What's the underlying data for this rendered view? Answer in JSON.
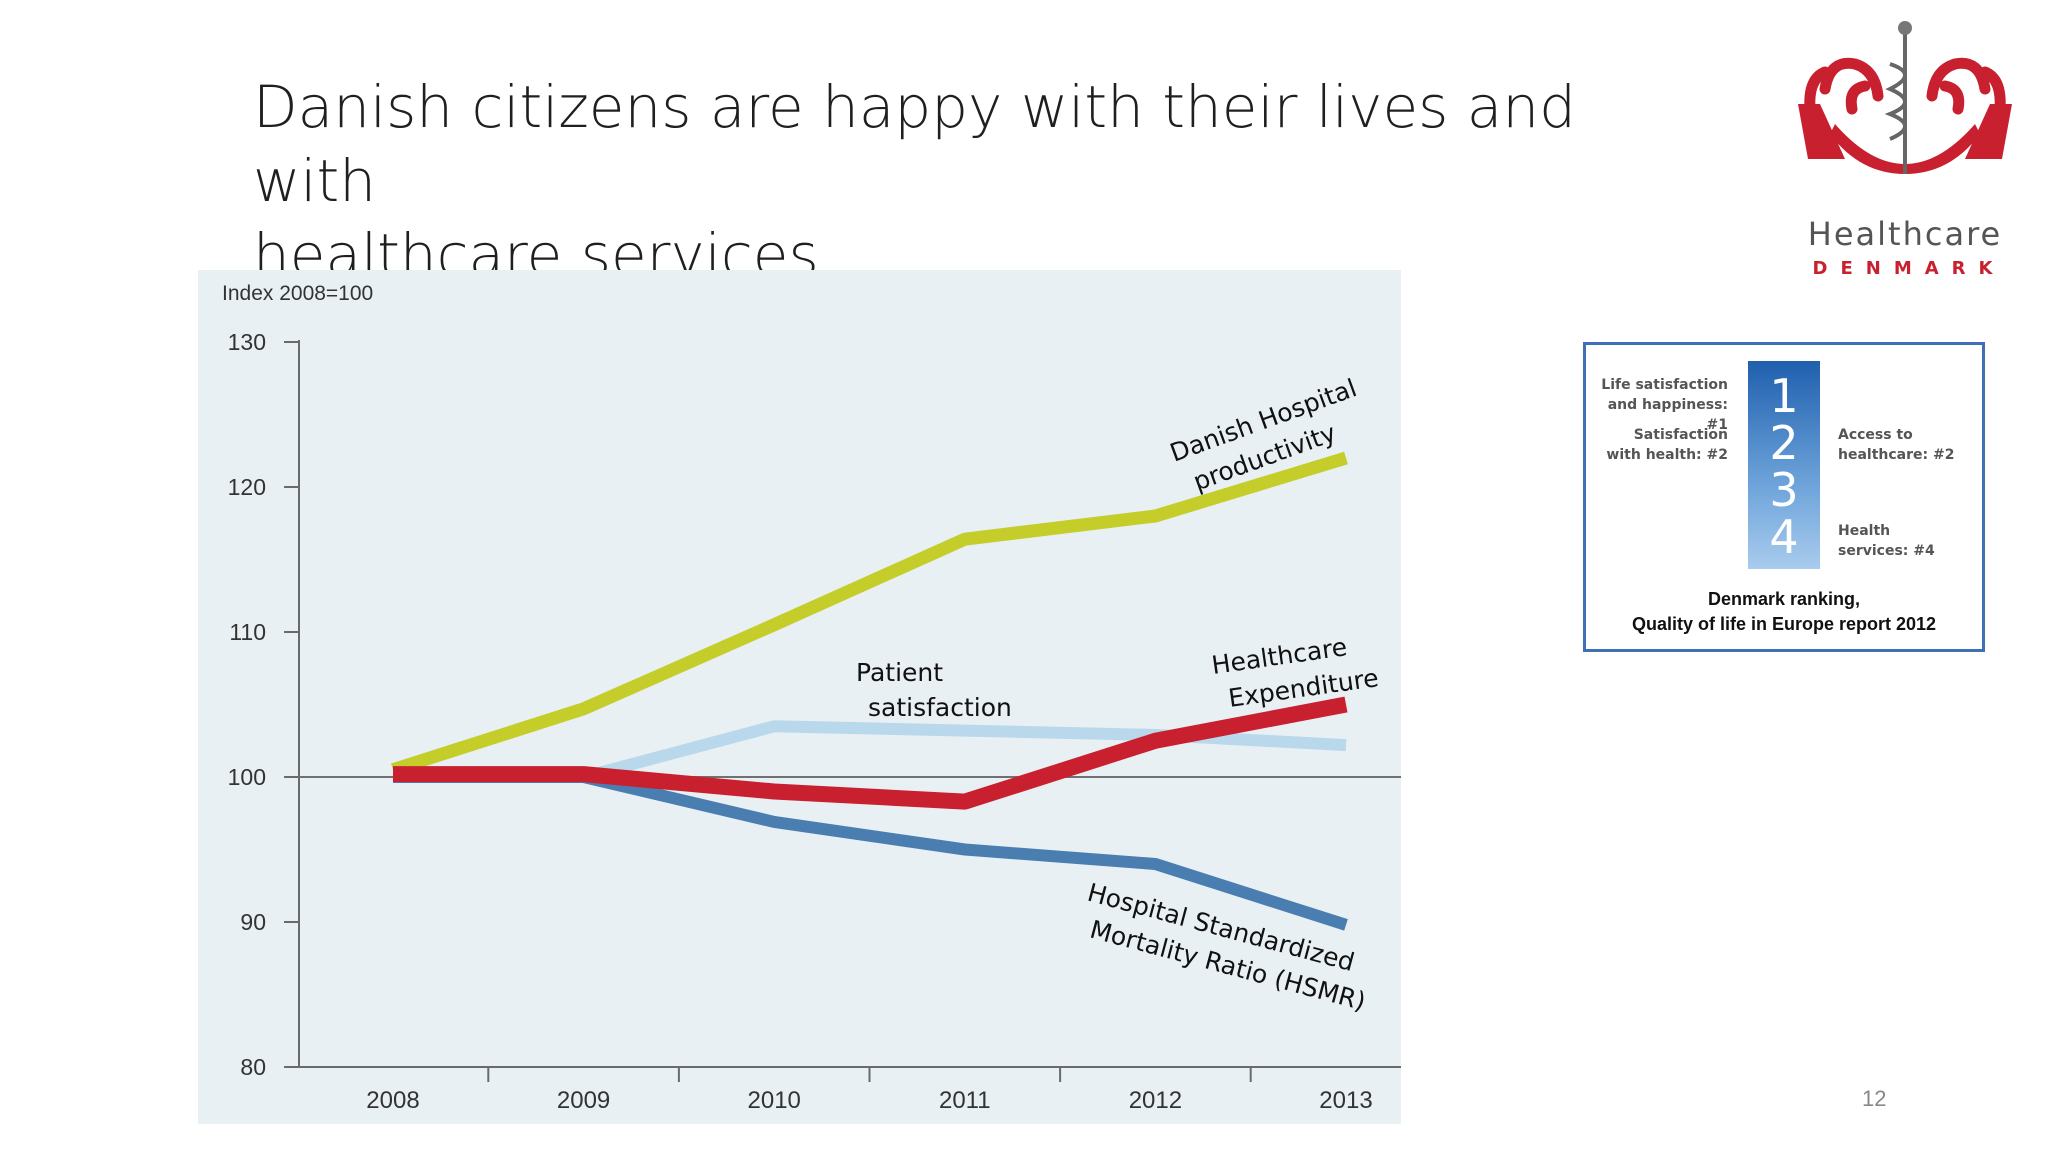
{
  "slide": {
    "title_line1": "Danish citizens are happy with their lives and with",
    "title_line2": "healthcare services",
    "page_number": "12"
  },
  "logo": {
    "word": "Healthcare",
    "country": "DENMARK",
    "color_primary": "#c8202f",
    "color_text": "#555555"
  },
  "ranking": {
    "items": [
      {
        "text_line1": "Life satisfaction",
        "text_line2": "and happiness: #1"
      },
      {
        "text_line1": "Satisfaction",
        "text_line2": "with health: #2"
      },
      {
        "text_line1": "Access to",
        "text_line2": "healthcare: #2"
      },
      {
        "text_line1": "Health",
        "text_line2": "services: #4"
      }
    ],
    "numbers": [
      "1",
      "2",
      "3",
      "4"
    ],
    "caption_line1": "Denmark ranking,",
    "caption_line2": "Quality of life in Europe report 2012",
    "border_color": "#3f6fb6"
  },
  "chart_data": {
    "type": "line",
    "ylabel": "Index 2008=100",
    "x": [
      "2008",
      "2009",
      "2010",
      "2011",
      "2012",
      "2013"
    ],
    "ylim": [
      80,
      130
    ],
    "yticks": [
      80,
      90,
      100,
      110,
      120,
      130
    ],
    "reference_line": 100,
    "background": "#e8f0f3",
    "series": [
      {
        "name_line1": "Danish Hospital",
        "name_line2": "productivity",
        "color": "#c5cd2a",
        "width": 13,
        "values": [
          100.5,
          104.7,
          110.5,
          116.4,
          118,
          122
        ]
      },
      {
        "name_line1": "Patient",
        "name_line2": "satisfaction",
        "color": "#b9d8ec",
        "width": 12,
        "values": [
          100,
          100,
          103.5,
          103.2,
          102.9,
          102.2
        ]
      },
      {
        "name_line1": "Hospital Standardized",
        "name_line2": "Mortality Ratio (HSMR)",
        "color": "#4a7eb1",
        "width": 12,
        "values": [
          100,
          100,
          96.9,
          95,
          94,
          89.8
        ]
      },
      {
        "name_line1": "Healthcare",
        "name_line2": "Expenditure",
        "color": "#c8202f",
        "width": 16,
        "values": [
          100.2,
          100.2,
          99,
          98.3,
          102.5,
          105
        ]
      }
    ]
  }
}
